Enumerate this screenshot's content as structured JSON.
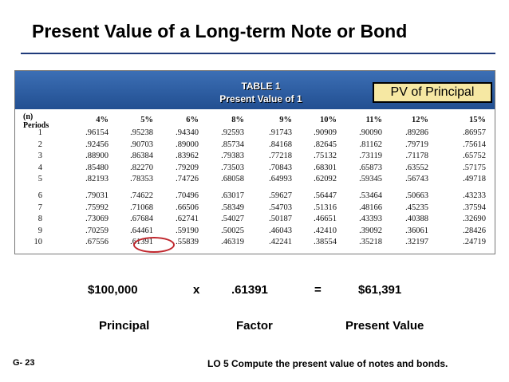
{
  "title": "Present Value of a Long-term Note or Bond",
  "table": {
    "title": "TABLE 1",
    "subtitle": "Present Value of 1",
    "callout": "PV of Principal",
    "period_head_1": "(n)",
    "period_head_2": "Periods",
    "headers": [
      "4%",
      "5%",
      "6%",
      "8%",
      "9%",
      "10%",
      "11%",
      "12%",
      "15%"
    ],
    "rows": [
      {
        "n": "1",
        "v": [
          ".96154",
          ".95238",
          ".94340",
          ".92593",
          ".91743",
          ".90909",
          ".90090",
          ".89286",
          ".86957"
        ]
      },
      {
        "n": "2",
        "v": [
          ".92456",
          ".90703",
          ".89000",
          ".85734",
          ".84168",
          ".82645",
          ".81162",
          ".79719",
          ".75614"
        ]
      },
      {
        "n": "3",
        "v": [
          ".88900",
          ".86384",
          ".83962",
          ".79383",
          ".77218",
          ".75132",
          ".73119",
          ".71178",
          ".65752"
        ]
      },
      {
        "n": "4",
        "v": [
          ".85480",
          ".82270",
          ".79209",
          ".73503",
          ".70843",
          ".68301",
          ".65873",
          ".63552",
          ".57175"
        ]
      },
      {
        "n": "5",
        "v": [
          ".82193",
          ".78353",
          ".74726",
          ".68058",
          ".64993",
          ".62092",
          ".59345",
          ".56743",
          ".49718"
        ]
      },
      {
        "n": "6",
        "v": [
          ".79031",
          ".74622",
          ".70496",
          ".63017",
          ".59627",
          ".56447",
          ".53464",
          ".50663",
          ".43233"
        ]
      },
      {
        "n": "7",
        "v": [
          ".75992",
          ".71068",
          ".66506",
          ".58349",
          ".54703",
          ".51316",
          ".48166",
          ".45235",
          ".37594"
        ]
      },
      {
        "n": "8",
        "v": [
          ".73069",
          ".67684",
          ".62741",
          ".54027",
          ".50187",
          ".46651",
          ".43393",
          ".40388",
          ".32690"
        ]
      },
      {
        "n": "9",
        "v": [
          ".70259",
          ".64461",
          ".59190",
          ".50025",
          ".46043",
          ".42410",
          ".39092",
          ".36061",
          ".28426"
        ]
      },
      {
        "n": "10",
        "v": [
          ".67556",
          ".61391",
          ".55839",
          ".46319",
          ".42241",
          ".38554",
          ".35218",
          ".32197",
          ".24719"
        ]
      }
    ]
  },
  "equation": {
    "principal": "$100,000",
    "times": "x",
    "factor": ".61391",
    "equals": "=",
    "result": "$61,391"
  },
  "labels": {
    "principal": "Principal",
    "factor": "Factor",
    "present_value": "Present Value"
  },
  "footer": {
    "slide": "G- 23",
    "objective": "LO 5 Compute the present value of notes and bonds."
  }
}
